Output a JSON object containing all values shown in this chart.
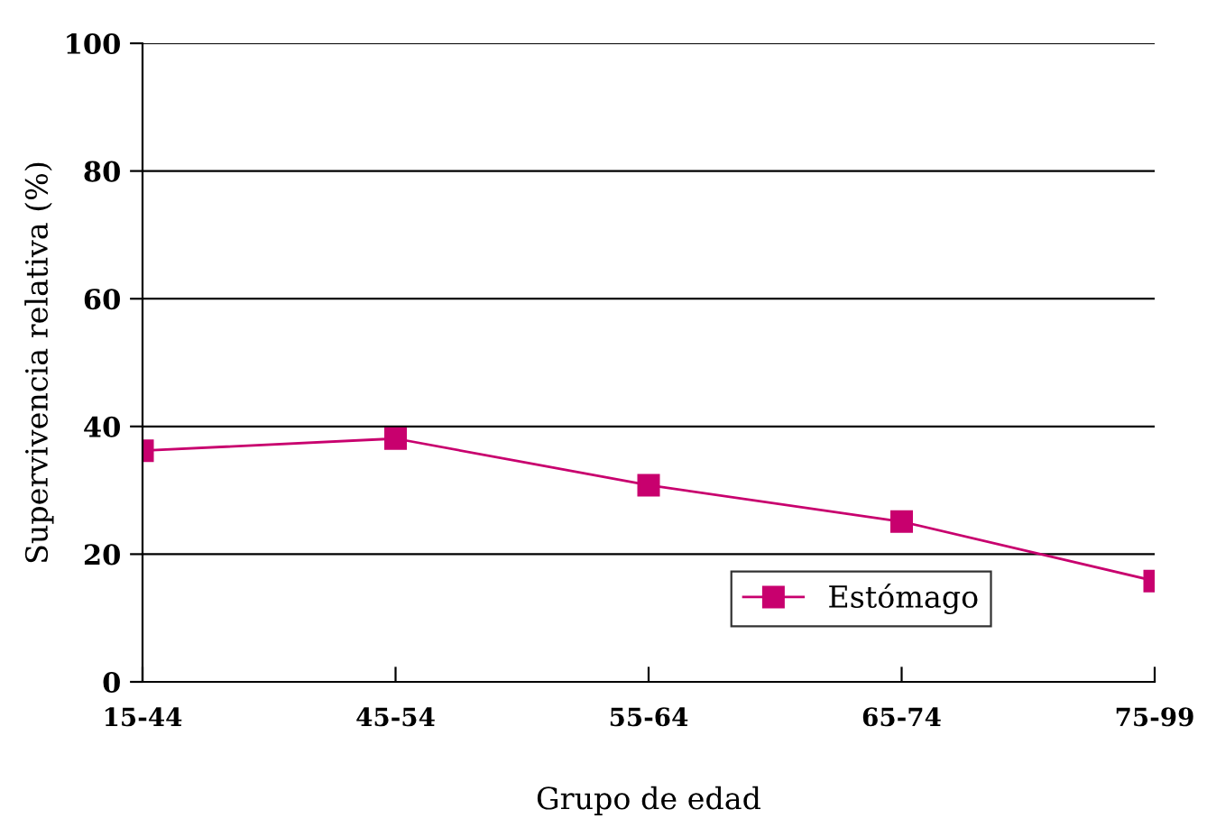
{
  "chart_data": {
    "type": "line",
    "xlabel": "Grupo de edad",
    "ylabel": "Supervivencia relativa (%)",
    "categories": [
      "15-44",
      "45-54",
      "55-64",
      "65-74",
      "75-99"
    ],
    "series": [
      {
        "name": "Estómago",
        "color": "#c8006e",
        "values": [
          36.2,
          38.1,
          30.8,
          25.1,
          15.8
        ]
      }
    ],
    "ylim": [
      0,
      100
    ],
    "yticks": [
      0,
      20,
      40,
      60,
      80,
      100
    ],
    "grid": "y",
    "legend": "bottom right",
    "marker": "square",
    "line_style": "solid"
  }
}
